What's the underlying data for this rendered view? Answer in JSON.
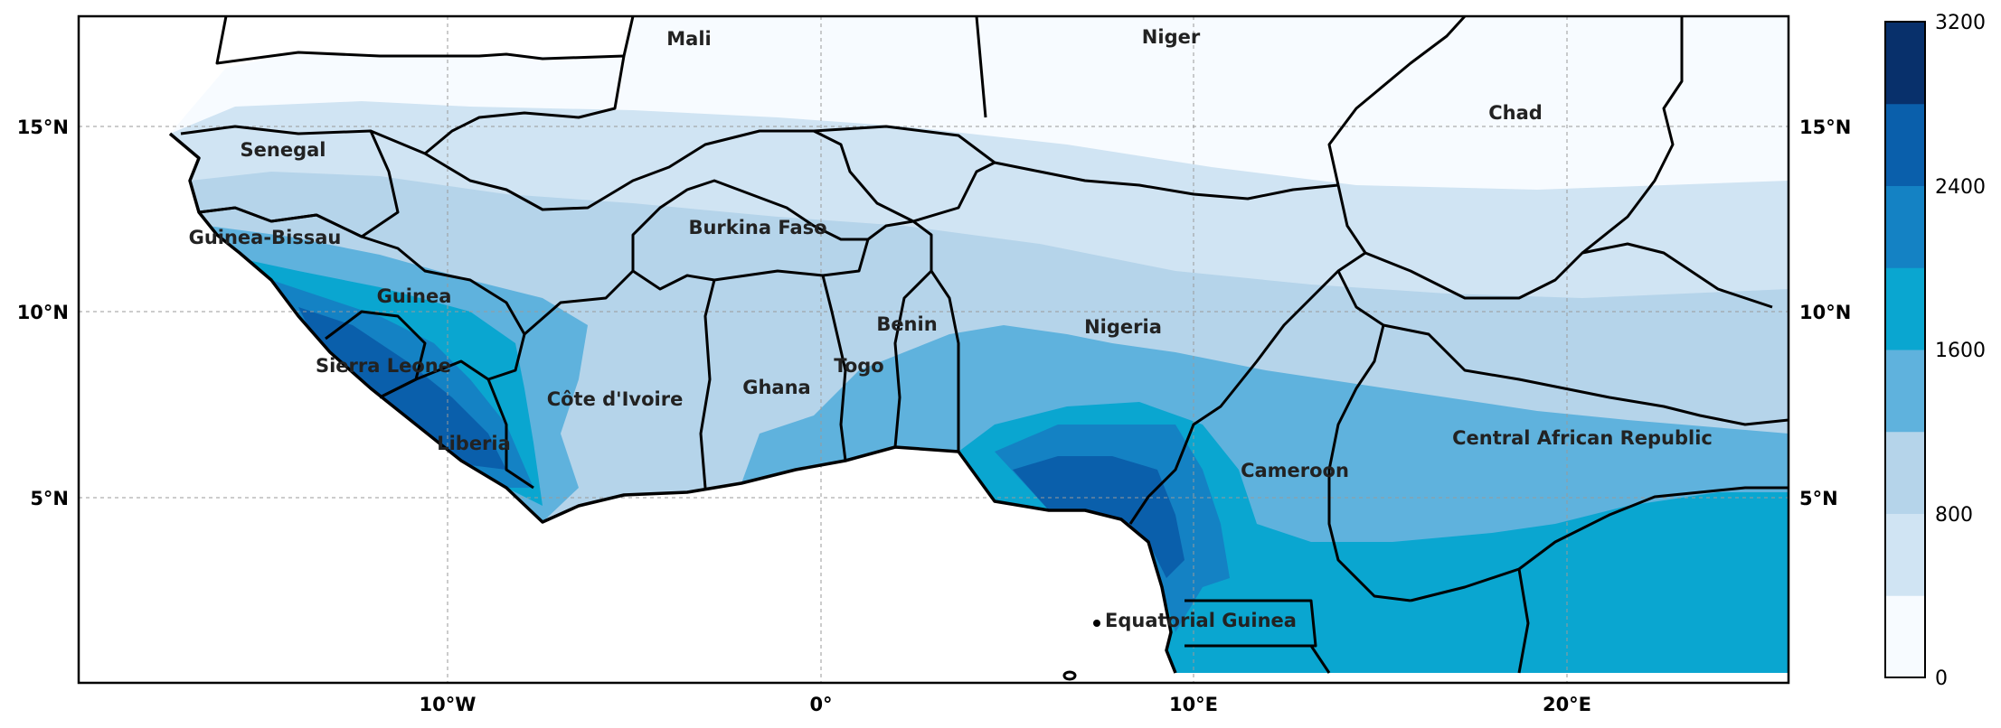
{
  "map": {
    "countries": [
      {
        "name": "Mali",
        "id": "mali"
      },
      {
        "name": "Niger",
        "id": "niger"
      },
      {
        "name": "Chad",
        "id": "chad"
      },
      {
        "name": "Senegal",
        "id": "senegal"
      },
      {
        "name": "Guinea-Bissau",
        "id": "guinea-bissau"
      },
      {
        "name": "Burkina Faso",
        "id": "burkina-faso"
      },
      {
        "name": "Guinea",
        "id": "guinea"
      },
      {
        "name": "Benin",
        "id": "benin"
      },
      {
        "name": "Nigeria",
        "id": "nigeria"
      },
      {
        "name": "Sierra Leone",
        "id": "sierra-leone"
      },
      {
        "name": "Togo",
        "id": "togo"
      },
      {
        "name": "Ghana",
        "id": "ghana"
      },
      {
        "name": "Côte d'Ivoire",
        "id": "cote-divoire"
      },
      {
        "name": "Central African Republic",
        "id": "central-african-republic"
      },
      {
        "name": "Liberia",
        "id": "liberia"
      },
      {
        "name": "Cameroon",
        "id": "cameroon"
      },
      {
        "name": "Equatorial Guinea",
        "id": "equatorial-guinea"
      }
    ],
    "lat_ticks": [
      "15°N",
      "10°N",
      "5°N"
    ],
    "lon_ticks": [
      "10°W",
      "0°",
      "10°E",
      "20°E"
    ]
  },
  "colorbar": {
    "tick_labels": [
      "3200",
      "2400",
      "1600",
      "800",
      "0"
    ],
    "levels": [
      0,
      400,
      800,
      1200,
      1600,
      2000,
      2400,
      2800,
      3200
    ],
    "colors": [
      "#f7fbff",
      "#d0e4f3",
      "#b5d4ea",
      "#5fb2dd",
      "#0aa6d0",
      "#1482c4",
      "#0a5fab",
      "#08306b"
    ]
  }
}
